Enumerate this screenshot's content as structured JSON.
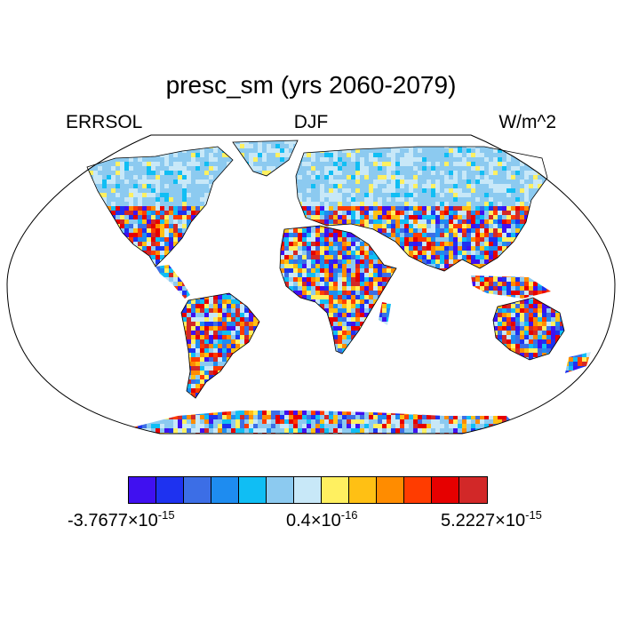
{
  "plot": {
    "title": "presc_sm (yrs 2060-2079)",
    "left_label": "ERRSOL",
    "center_label": "DJF",
    "right_label": "W/m^2"
  },
  "map": {
    "projection": "Robinson",
    "field_style": "noisy gridded values over land, near-zero over high latitudes"
  },
  "colorbar": {
    "colors": [
      "#4010f0",
      "#1e32f0",
      "#3c6ee6",
      "#1e8cf0",
      "#10bef4",
      "#8ccaf0",
      "#c8e8f8",
      "#fff060",
      "#ffc014",
      "#ff8c00",
      "#ff3c00",
      "#e60000",
      "#d22828"
    ],
    "label_min": {
      "mantissa": "-3.7677",
      "times": "×10",
      "exp": "-15"
    },
    "label_mid": {
      "mantissa": "0.4",
      "times": "×10",
      "exp": "-16"
    },
    "label_max": {
      "mantissa": "5.2227",
      "times": "×10",
      "exp": "-15"
    }
  }
}
